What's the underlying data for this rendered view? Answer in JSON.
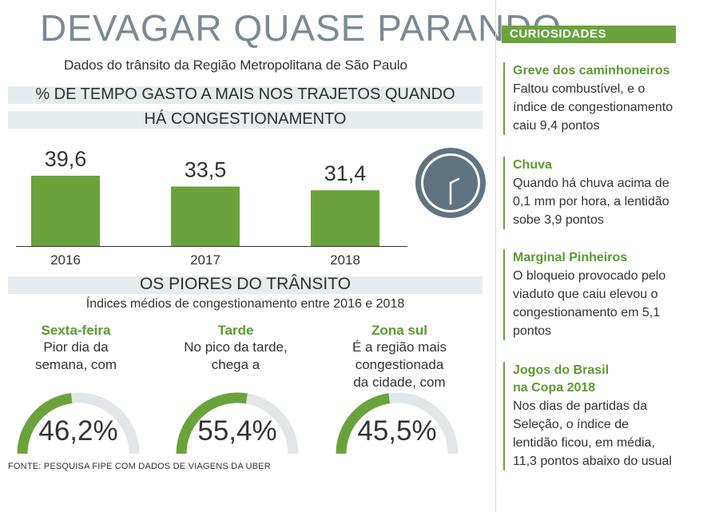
{
  "title": "DEVAGAR QUASE PARANDO",
  "subtitle": "Dados do trânsito da Região Metropolitana de São Paulo",
  "section1": {
    "line1": "% DE TEMPO GASTO A MAIS NOS TRAJETOS QUANDO",
    "line2": "HÁ CONGESTIONAMENTO"
  },
  "chart_data": {
    "type": "bar",
    "title": "% DE TEMPO GASTO A MAIS NOS TRAJETOS QUANDO HÁ CONGESTIONAMENTO",
    "categories": [
      "2016",
      "2017",
      "2018"
    ],
    "values": [
      39.6,
      33.5,
      31.4
    ],
    "value_labels": [
      "39,6",
      "33,5",
      "31,4"
    ],
    "bar_color": "#6aa33b",
    "grid": false
  },
  "section2": {
    "title": "OS PIORES DO TRÂNSITO",
    "subtitle": "Índices médios de congestionamento entre 2016 e 2018"
  },
  "stats": [
    {
      "head": "Sexta-feira",
      "desc1": "Pior dia da",
      "desc2": "semana, com",
      "value": 46.2,
      "label": "46,2%"
    },
    {
      "head": "Tarde",
      "desc1": "No pico da tarde,",
      "desc2": "chega a",
      "value": 55.4,
      "label": "55,4%"
    },
    {
      "head": "Zona sul",
      "desc1": "É a região mais congestionada",
      "desc2": "da cidade, com",
      "value": 45.5,
      "label": "45,5%"
    }
  ],
  "source": "FONTE: PESQUISA FIPE COM DADOS DE VIAGENS DA UBER",
  "curiosidades": {
    "header": "CURIOSIDADES",
    "items": [
      {
        "title": "Greve dos caminhoneiros",
        "lines": [
          "Faltou combustível, e o",
          "índice de congestionamento",
          "caiu 9,4 pontos"
        ]
      },
      {
        "title": "Chuva",
        "lines": [
          "Quando há chuva acima de",
          "0,1 mm por hora, a lentidão",
          "sobe 3,9 pontos"
        ]
      },
      {
        "title": "Marginal Pinheiros",
        "lines": [
          "O bloqueio provocado pelo",
          "viaduto que caiu elevou o",
          "congestionamento em 5,1",
          "pontos"
        ]
      },
      {
        "title": "Jogos do Brasil",
        "title2": "na Copa 2018",
        "lines": [
          "Nos dias de partidas da",
          "Seleção, o índice de",
          "lentidão ficou, em média,",
          "11,3 pontos abaixo do usual"
        ]
      }
    ]
  },
  "colors": {
    "accent": "#6aa33b",
    "gauge_track": "#e2e6e8",
    "band": "#e7ecee",
    "title": "#7a8a93",
    "clock": "#5f7480"
  },
  "icons": {
    "clock": "clock-icon"
  }
}
